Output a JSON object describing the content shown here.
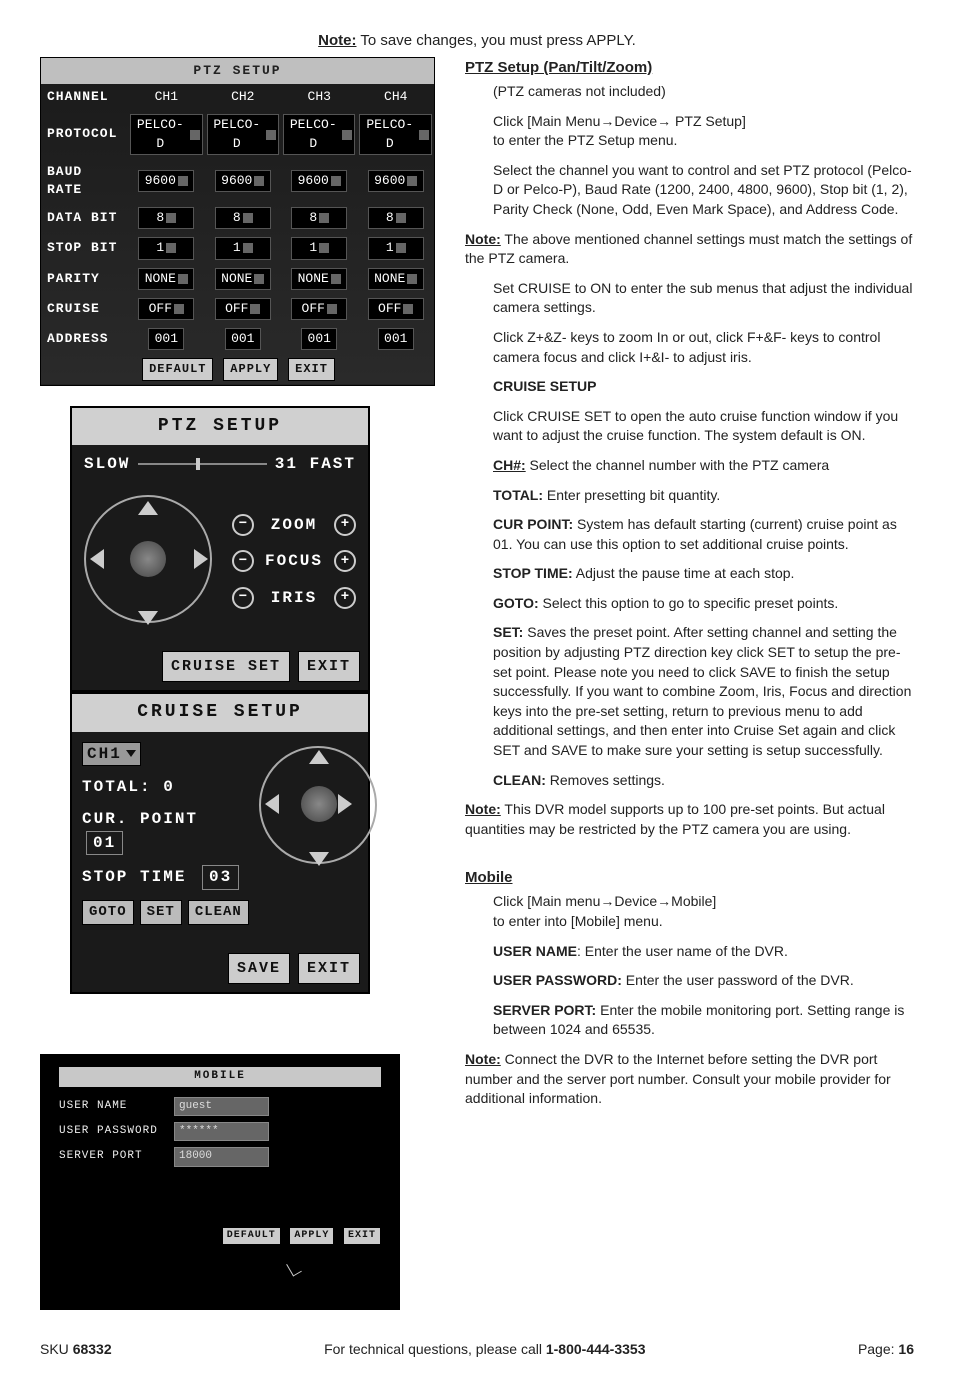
{
  "top_note_label": "Note:",
  "top_note_text": " To save changes, you must press APPLY.",
  "ptz_table": {
    "title": "PTZ SETUP",
    "headers": [
      "CHANNEL",
      "CH1",
      "CH2",
      "CH3",
      "CH4"
    ],
    "rows": [
      {
        "label": "PROTOCOL",
        "v": "PELCO-D"
      },
      {
        "label": "BAUD RATE",
        "v": "9600"
      },
      {
        "label": "DATA BIT",
        "v": "8"
      },
      {
        "label": "STOP BIT",
        "v": "1"
      },
      {
        "label": "PARITY",
        "v": "NONE"
      },
      {
        "label": "CRUISE",
        "v": "OFF"
      },
      {
        "label": "ADDRESS",
        "v": "001"
      }
    ],
    "buttons": {
      "default": "DEFAULT",
      "apply": "APPLY",
      "exit": "EXIT"
    }
  },
  "ptz_panel": {
    "title": "PTZ SETUP",
    "slow": "SLOW",
    "fast_val": "31",
    "fast": "FAST",
    "zoom": "ZOOM",
    "focus": "FOCUS",
    "iris": "IRIS",
    "cruise_set": "CRUISE SET",
    "exit": "EXIT"
  },
  "cruise_panel": {
    "title": "CRUISE SETUP",
    "ch": "CH1",
    "total_label": "TOTAL:",
    "total_val": "0",
    "cur_point_label": "CUR. POINT",
    "cur_point_val": "01",
    "stop_time_label": "STOP TIME",
    "stop_time_val": "03",
    "goto": "GOTO",
    "set": "SET",
    "clean": "CLEAN",
    "save": "SAVE",
    "exit": "EXIT"
  },
  "mobile_panel": {
    "title": "MOBILE",
    "user_name_label": "USER  NAME",
    "user_name_val": "guest",
    "user_pw_label": "USER  PASSWORD",
    "user_pw_val": "******",
    "server_port_label": "SERVER  PORT",
    "server_port_val": "18000",
    "default": "DEFAULT",
    "apply": "APPLY",
    "exit": "EXIT"
  },
  "right": {
    "h_ptz": "PTZ Setup (Pan/Tilt/Zoom)",
    "p_ptz_not_included": "(PTZ cameras not included)",
    "p_click_ptz_1": "Click [Main Menu→Device→ PTZ Setup]",
    "p_click_ptz_2": "to enter the PTZ Setup menu.",
    "p_select_channel": "Select the channel you want to control and set PTZ protocol (Pelco-D or Pelco-P), Baud Rate (1200, 2400, 4800, 9600), Stop bit (1, 2), Parity Check (None, Odd, Even Mark Space), and Address Code.",
    "note_match": "Note:",
    "note_match_text": " The above mentioned channel settings must match the settings of the PTZ camera.",
    "p_set_cruise": "Set CRUISE to ON to enter the sub menus that adjust the individual camera settings.",
    "p_zkeys": "Click Z+&Z- keys to zoom In or out, click F+&F- keys to control camera focus and click I+&I- to adjust iris.",
    "h_cruise": "CRUISE SETUP",
    "p_cruise_open": "Click CRUISE SET to open the auto cruise function window if you want to adjust the cruise function. The system default is ON.",
    "b_ch": "CH#:",
    "t_ch": " Select the channel number with the PTZ camera",
    "b_total": "TOTAL:",
    "t_total": " Enter presetting bit quantity.",
    "b_cur": "CUR POINT:",
    "t_cur": " System has default starting (current) cruise point as 01. You can use this option to set additional cruise points.",
    "b_stop": "STOP TIME:",
    "t_stop": " Adjust the pause time at each stop.",
    "b_goto": "GOTO:",
    "t_goto": " Select this option to go to specific preset points.",
    "b_set": "SET:",
    "t_set": " Saves the preset point. After setting channel and setting the position by adjusting PTZ direction key click SET to setup the pre-set point. Please note you need to click SAVE to finish the setup successfully. If you want to combine Zoom, Iris, Focus and direction keys into the pre-set setting, return to previous menu to add additional settings, and then enter into Cruise Set again and click SET and SAVE to make sure your setting is setup successfully.",
    "b_clean": "CLEAN:",
    "t_clean": " Removes settings.",
    "note_100": "Note:",
    "note_100_text": " This DVR model supports up to 100 pre-set points. But actual quantities may be restricted by the PTZ camera you are using.",
    "h_mobile": "Mobile",
    "p_mobile_1": "Click [Main menu→Device→Mobile]",
    "p_mobile_2": "to enter into [Mobile] menu.",
    "b_uname": "USER NAME",
    "t_uname": ": Enter the user name of the DVR.",
    "b_upw": "USER PASSWORD:",
    "t_upw": " Enter the user password of the DVR.",
    "b_sport": "SERVER PORT:",
    "t_sport": " Enter the mobile monitoring port. Setting range is between 1024 and 65535.",
    "note_connect": "Note:",
    "note_connect_text": " Connect the DVR to the Internet before setting the DVR port number and the server port number. Consult your mobile provider for additional information."
  },
  "footer": {
    "sku_label": "SKU ",
    "sku": "68332",
    "tech": "For technical questions, please call ",
    "phone": "1-800-444-3353",
    "page_label": "Page: ",
    "page": "16"
  }
}
